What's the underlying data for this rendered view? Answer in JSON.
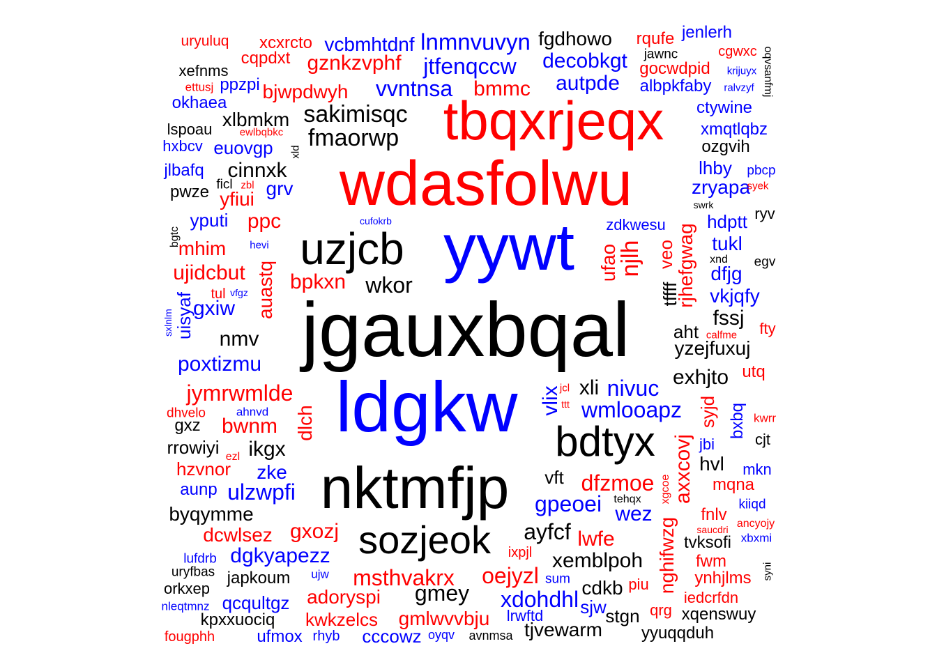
{
  "palette": {
    "red": "#ff0000",
    "blue": "#0000ff",
    "black": "#000000"
  },
  "words": [
    {
      "text": "jgauxbqal",
      "color": "black"
    },
    {
      "text": "ldgkw",
      "color": "blue"
    },
    {
      "text": "wdasfolwu",
      "color": "red"
    },
    {
      "text": "yywt",
      "color": "blue"
    },
    {
      "text": "nktmfjp",
      "color": "black"
    },
    {
      "text": "tbqxrjeqx",
      "color": "red"
    },
    {
      "text": "uzjcb",
      "color": "black"
    },
    {
      "text": "bdtyx",
      "color": "black"
    },
    {
      "text": "sozjeok",
      "color": "black"
    },
    {
      "text": "lnmnvuvyn",
      "color": "blue"
    },
    {
      "text": "fgdhowo",
      "color": "black"
    },
    {
      "text": "rqufe",
      "color": "red"
    },
    {
      "text": "jenlerh",
      "color": "blue"
    },
    {
      "text": "uryuluq",
      "color": "red"
    },
    {
      "text": "xcxrcto",
      "color": "red"
    },
    {
      "text": "vcbmhtdnf",
      "color": "blue"
    },
    {
      "text": "jawnc",
      "color": "black"
    },
    {
      "text": "cgwxc",
      "color": "red"
    },
    {
      "text": "oqvsanfmj",
      "color": "black"
    },
    {
      "text": "cqpdxt",
      "color": "red"
    },
    {
      "text": "gznkzvphf",
      "color": "red"
    },
    {
      "text": "jtfenqccw",
      "color": "blue"
    },
    {
      "text": "decobkgt",
      "color": "blue"
    },
    {
      "text": "gocwdpid",
      "color": "red"
    },
    {
      "text": "krijuyx",
      "color": "blue"
    },
    {
      "text": "xefnms",
      "color": "black"
    },
    {
      "text": "ettusj",
      "color": "red"
    },
    {
      "text": "ppzpi",
      "color": "blue"
    },
    {
      "text": "bjwpdwyh",
      "color": "red"
    },
    {
      "text": "vvntnsa",
      "color": "blue"
    },
    {
      "text": "bmmc",
      "color": "red"
    },
    {
      "text": "autpde",
      "color": "blue"
    },
    {
      "text": "albpkfaby",
      "color": "blue"
    },
    {
      "text": "ralvzyf",
      "color": "blue"
    },
    {
      "text": "okhaea",
      "color": "blue"
    },
    {
      "text": "sakimisqc",
      "color": "black"
    },
    {
      "text": "ctywine",
      "color": "blue"
    },
    {
      "text": "xlbmkm",
      "color": "black"
    },
    {
      "text": "lspoau",
      "color": "black"
    },
    {
      "text": "ewlbqbkc",
      "color": "red"
    },
    {
      "text": "fmaorwp",
      "color": "black"
    },
    {
      "text": "xmqtlqbz",
      "color": "blue"
    },
    {
      "text": "hxbcv",
      "color": "blue"
    },
    {
      "text": "euovgp",
      "color": "blue"
    },
    {
      "text": "xld",
      "color": "black"
    },
    {
      "text": "ozgvih",
      "color": "black"
    },
    {
      "text": "jlbafq",
      "color": "blue"
    },
    {
      "text": "cinnxk",
      "color": "black"
    },
    {
      "text": "lhby",
      "color": "blue"
    },
    {
      "text": "pbcp",
      "color": "blue"
    },
    {
      "text": "pwze",
      "color": "black"
    },
    {
      "text": "ficl",
      "color": "black"
    },
    {
      "text": "zbl",
      "color": "red"
    },
    {
      "text": "grv",
      "color": "blue"
    },
    {
      "text": "zryapa",
      "color": "blue"
    },
    {
      "text": "syek",
      "color": "red"
    },
    {
      "text": "yfiui",
      "color": "red"
    },
    {
      "text": "swrk",
      "color": "black"
    },
    {
      "text": "ryv",
      "color": "black"
    },
    {
      "text": "yputi",
      "color": "blue"
    },
    {
      "text": "ppc",
      "color": "red"
    },
    {
      "text": "cufokrb",
      "color": "blue"
    },
    {
      "text": "zdkwesu",
      "color": "blue"
    },
    {
      "text": "hdptt",
      "color": "blue"
    },
    {
      "text": "bgtc",
      "color": "black"
    },
    {
      "text": "rjhefgwag",
      "color": "red"
    },
    {
      "text": "mhim",
      "color": "red"
    },
    {
      "text": "hevi",
      "color": "blue"
    },
    {
      "text": "ufao",
      "color": "red"
    },
    {
      "text": "njlh",
      "color": "red"
    },
    {
      "text": "veo",
      "color": "red"
    },
    {
      "text": "tukl",
      "color": "blue"
    },
    {
      "text": "xnd",
      "color": "black"
    },
    {
      "text": "egv",
      "color": "black"
    },
    {
      "text": "ujidcbut",
      "color": "red"
    },
    {
      "text": "auastq",
      "color": "red"
    },
    {
      "text": "bpkxn",
      "color": "red"
    },
    {
      "text": "wkor",
      "color": "black"
    },
    {
      "text": "tffff",
      "color": "black"
    },
    {
      "text": "dfjg",
      "color": "blue"
    },
    {
      "text": "tul",
      "color": "red"
    },
    {
      "text": "vfgz",
      "color": "blue"
    },
    {
      "text": "vkjqfy",
      "color": "blue"
    },
    {
      "text": "gxiw",
      "color": "blue"
    },
    {
      "text": "uisyaf",
      "color": "blue"
    },
    {
      "text": "sxlnlm",
      "color": "blue"
    },
    {
      "text": "fssj",
      "color": "black"
    },
    {
      "text": "nmv",
      "color": "black"
    },
    {
      "text": "aht",
      "color": "black"
    },
    {
      "text": "fty",
      "color": "red"
    },
    {
      "text": "calfme",
      "color": "red"
    },
    {
      "text": "yzejfuxuj",
      "color": "black"
    },
    {
      "text": "poxtizmu",
      "color": "blue"
    },
    {
      "text": "utq",
      "color": "red"
    },
    {
      "text": "exhjto",
      "color": "black"
    },
    {
      "text": "xli",
      "color": "black"
    },
    {
      "text": "nivuc",
      "color": "blue"
    },
    {
      "text": "jymrwmlde",
      "color": "red"
    },
    {
      "text": "vlix",
      "color": "blue"
    },
    {
      "text": "jcl",
      "color": "red"
    },
    {
      "text": "syjd",
      "color": "red"
    },
    {
      "text": "ttt",
      "color": "red"
    },
    {
      "text": "wmlooapz",
      "color": "blue"
    },
    {
      "text": "dhvelo",
      "color": "red"
    },
    {
      "text": "ahnvd",
      "color": "blue"
    },
    {
      "text": "bxbq",
      "color": "blue"
    },
    {
      "text": "kwrr",
      "color": "red"
    },
    {
      "text": "gxz",
      "color": "black"
    },
    {
      "text": "bwnm",
      "color": "red"
    },
    {
      "text": "dlch",
      "color": "red"
    },
    {
      "text": "axxcovj",
      "color": "red"
    },
    {
      "text": "cjt",
      "color": "black"
    },
    {
      "text": "rrowiyi",
      "color": "black"
    },
    {
      "text": "ikgx",
      "color": "black"
    },
    {
      "text": "jbi",
      "color": "blue"
    },
    {
      "text": "ezl",
      "color": "red"
    },
    {
      "text": "hvl",
      "color": "black"
    },
    {
      "text": "hzvnor",
      "color": "red"
    },
    {
      "text": "zke",
      "color": "blue"
    },
    {
      "text": "mkn",
      "color": "blue"
    },
    {
      "text": "vft",
      "color": "black"
    },
    {
      "text": "dfzmoe",
      "color": "red"
    },
    {
      "text": "xgcoe",
      "color": "red"
    },
    {
      "text": "mqna",
      "color": "red"
    },
    {
      "text": "aunp",
      "color": "blue"
    },
    {
      "text": "ulzwpfi",
      "color": "blue"
    },
    {
      "text": "gpeoei",
      "color": "blue"
    },
    {
      "text": "tehqx",
      "color": "black"
    },
    {
      "text": "kiiqd",
      "color": "blue"
    },
    {
      "text": "byqymme",
      "color": "black"
    },
    {
      "text": "wez",
      "color": "blue"
    },
    {
      "text": "nghifwzg",
      "color": "red"
    },
    {
      "text": "fnlv",
      "color": "red"
    },
    {
      "text": "ancyojy",
      "color": "red"
    },
    {
      "text": "dcwlsez",
      "color": "red"
    },
    {
      "text": "gxozj",
      "color": "red"
    },
    {
      "text": "ayfcf",
      "color": "black"
    },
    {
      "text": "lwfe",
      "color": "red"
    },
    {
      "text": "saucdri",
      "color": "red"
    },
    {
      "text": "tvksofi",
      "color": "black"
    },
    {
      "text": "xbxmi",
      "color": "blue"
    },
    {
      "text": "lufdrb",
      "color": "blue"
    },
    {
      "text": "dgkyapezz",
      "color": "blue"
    },
    {
      "text": "ixpjl",
      "color": "red"
    },
    {
      "text": "xemblpoh",
      "color": "black"
    },
    {
      "text": "fwm",
      "color": "red"
    },
    {
      "text": "uryfbas",
      "color": "black"
    },
    {
      "text": "japkoum",
      "color": "black"
    },
    {
      "text": "ujw",
      "color": "blue"
    },
    {
      "text": "msthvakrx",
      "color": "red"
    },
    {
      "text": "oejyzl",
      "color": "red"
    },
    {
      "text": "sum",
      "color": "blue"
    },
    {
      "text": "ynhjlms",
      "color": "red"
    },
    {
      "text": "syni",
      "color": "black"
    },
    {
      "text": "orkxep",
      "color": "black"
    },
    {
      "text": "adoryspi",
      "color": "red"
    },
    {
      "text": "gmey",
      "color": "black"
    },
    {
      "text": "cdkb",
      "color": "black"
    },
    {
      "text": "piu",
      "color": "red"
    },
    {
      "text": "xdohdhl",
      "color": "blue"
    },
    {
      "text": "nleqtmnz",
      "color": "blue"
    },
    {
      "text": "qcqultgz",
      "color": "blue"
    },
    {
      "text": "iedcrfdn",
      "color": "red"
    },
    {
      "text": "sjw",
      "color": "blue"
    },
    {
      "text": "kpxxuociq",
      "color": "black"
    },
    {
      "text": "kwkzelcs",
      "color": "red"
    },
    {
      "text": "gmlwvvbju",
      "color": "red"
    },
    {
      "text": "lrwftd",
      "color": "blue"
    },
    {
      "text": "stgn",
      "color": "black"
    },
    {
      "text": "qrg",
      "color": "red"
    },
    {
      "text": "xqenswuy",
      "color": "black"
    },
    {
      "text": "fougphh",
      "color": "red"
    },
    {
      "text": "ufmox",
      "color": "blue"
    },
    {
      "text": "rhyb",
      "color": "blue"
    },
    {
      "text": "cccowz",
      "color": "blue"
    },
    {
      "text": "oyqv",
      "color": "blue"
    },
    {
      "text": "avnmsa",
      "color": "black"
    },
    {
      "text": "tjvewarm",
      "color": "black"
    },
    {
      "text": "yyuqqduh",
      "color": "black"
    }
  ]
}
